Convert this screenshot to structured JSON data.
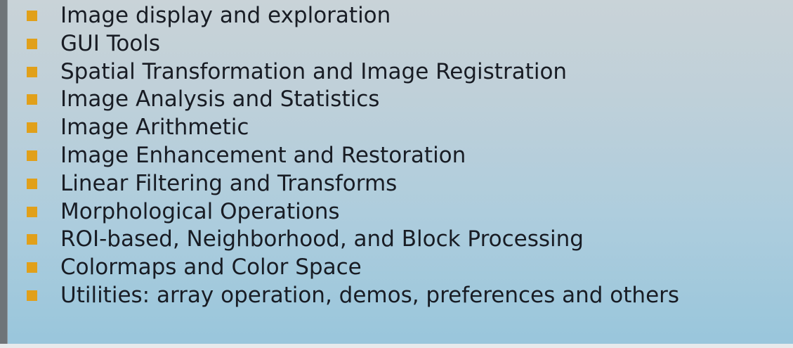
{
  "slide": {
    "bullet_color": "#e1a01a",
    "background_top": "#c9d3d8",
    "background_bottom": "#99c6dc",
    "items": [
      {
        "text": "Image display and exploration"
      },
      {
        "text": "GUI Tools"
      },
      {
        "text": "Spatial Transformation and Image Registration"
      },
      {
        "text": "Image Analysis and Statistics"
      },
      {
        "text": "Image Arithmetic"
      },
      {
        "text": "Image Enhancement and Restoration"
      },
      {
        "text": "Linear Filtering and Transforms"
      },
      {
        "text": "Morphological Operations"
      },
      {
        "text": "ROI-based, Neighborhood, and Block Processing"
      },
      {
        "text": "Colormaps and Color Space"
      },
      {
        "text": "Utilities: array operation, demos, preferences and others"
      }
    ]
  }
}
